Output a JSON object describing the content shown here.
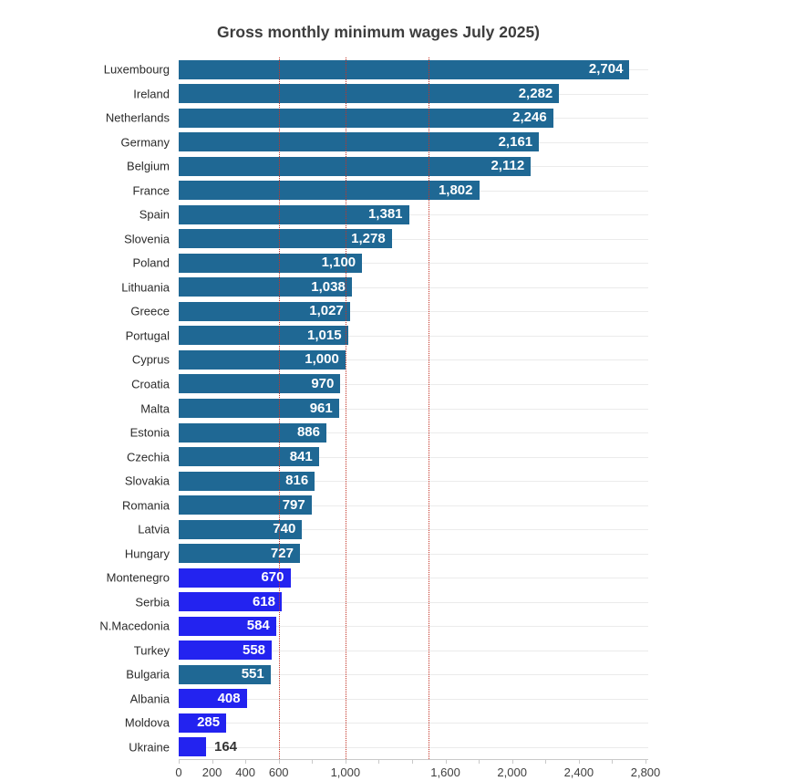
{
  "title": "Gross monthly minimum wages July 2025)",
  "colors": {
    "eu_bar": "#1f6894",
    "non_eu_bar": "#2323f0",
    "reference_line": "#c43326",
    "row_gridline": "#ebebeb",
    "axis_line": "#c9c9c9",
    "title_text": "#3d3d3d",
    "country_label_text": "#2b2b2b",
    "value_label_inside": "#ffffff",
    "value_label_outside": "#333333",
    "tick_label_text": "#3f3f3f"
  },
  "chart_data": {
    "type": "bar",
    "orientation": "horizontal",
    "title": "Gross monthly minimum wages July 2025)",
    "xlabel": "",
    "ylabel": "",
    "legend": "none",
    "categories": [
      "Luxembourg",
      "Ireland",
      "Netherlands",
      "Germany",
      "Belgium",
      "France",
      "Spain",
      "Slovenia",
      "Poland",
      "Lithuania",
      "Greece",
      "Portugal",
      "Cyprus",
      "Croatia",
      "Malta",
      "Estonia",
      "Czechia",
      "Slovakia",
      "Romania",
      "Latvia",
      "Hungary",
      "Montenegro",
      "Serbia",
      "N.Macedonia",
      "Turkey",
      "Bulgaria",
      "Albania",
      "Moldova",
      "Ukraine"
    ],
    "values": [
      2704,
      2282,
      2246,
      2161,
      2112,
      1802,
      1381,
      1278,
      1100,
      1038,
      1027,
      1015,
      1000,
      970,
      961,
      886,
      841,
      816,
      797,
      740,
      727,
      670,
      618,
      584,
      558,
      551,
      408,
      285,
      164
    ],
    "display_values": [
      "2,704",
      "2,282",
      "2,246",
      "2,161",
      "2,112",
      "1,802",
      "1,381",
      "1,278",
      "1,100",
      "1,038",
      "1,027",
      "1,015",
      "1,000",
      "970",
      "961",
      "886",
      "841",
      "816",
      "797",
      "740",
      "727",
      "670",
      "618",
      "584",
      "558",
      "551",
      "408",
      "285",
      "164"
    ],
    "groups": [
      "eu",
      "eu",
      "eu",
      "eu",
      "eu",
      "eu",
      "eu",
      "eu",
      "eu",
      "eu",
      "eu",
      "eu",
      "eu",
      "eu",
      "eu",
      "eu",
      "eu",
      "eu",
      "eu",
      "eu",
      "eu",
      "non_eu",
      "non_eu",
      "non_eu",
      "non_eu",
      "eu",
      "non_eu",
      "non_eu",
      "non_eu"
    ],
    "xlim": [
      0,
      2800
    ],
    "x_tick_interval": 200,
    "x_tick_labels": [
      {
        "value": 0,
        "label": "0"
      },
      {
        "value": 200,
        "label": "200"
      },
      {
        "value": 400,
        "label": "400"
      },
      {
        "value": 600,
        "label": "600"
      },
      {
        "value": 1000,
        "label": "1,000"
      },
      {
        "value": 1600,
        "label": "1,600"
      },
      {
        "value": 2000,
        "label": "2,000"
      },
      {
        "value": 2400,
        "label": "2,400"
      },
      {
        "value": 2800,
        "label": "2,800"
      }
    ],
    "reference_lines_x": [
      600,
      1000,
      1500
    ],
    "grid": "horizontal row lines, red dotted vertical reference lines"
  }
}
